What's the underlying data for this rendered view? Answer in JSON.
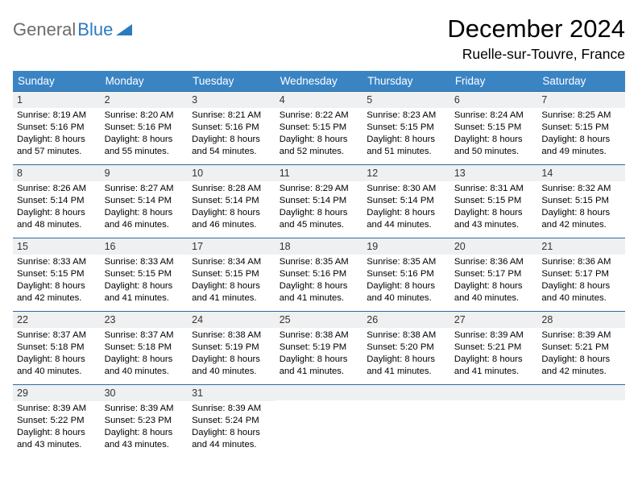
{
  "logo": {
    "part1": "General",
    "part2": "Blue"
  },
  "title": "December 2024",
  "location": "Ruelle-sur-Touvre, France",
  "colors": {
    "header_bg": "#3a84c4",
    "row_border": "#2e6aa0",
    "daynum_bg": "#eef0f1",
    "logo_gray": "#6c6c6c",
    "logo_blue": "#2b7bbf"
  },
  "weekdays": [
    "Sunday",
    "Monday",
    "Tuesday",
    "Wednesday",
    "Thursday",
    "Friday",
    "Saturday"
  ],
  "weeks": [
    [
      {
        "n": "1",
        "sr": "8:19 AM",
        "ss": "5:16 PM",
        "dl": "8 hours and 57 minutes."
      },
      {
        "n": "2",
        "sr": "8:20 AM",
        "ss": "5:16 PM",
        "dl": "8 hours and 55 minutes."
      },
      {
        "n": "3",
        "sr": "8:21 AM",
        "ss": "5:16 PM",
        "dl": "8 hours and 54 minutes."
      },
      {
        "n": "4",
        "sr": "8:22 AM",
        "ss": "5:15 PM",
        "dl": "8 hours and 52 minutes."
      },
      {
        "n": "5",
        "sr": "8:23 AM",
        "ss": "5:15 PM",
        "dl": "8 hours and 51 minutes."
      },
      {
        "n": "6",
        "sr": "8:24 AM",
        "ss": "5:15 PM",
        "dl": "8 hours and 50 minutes."
      },
      {
        "n": "7",
        "sr": "8:25 AM",
        "ss": "5:15 PM",
        "dl": "8 hours and 49 minutes."
      }
    ],
    [
      {
        "n": "8",
        "sr": "8:26 AM",
        "ss": "5:14 PM",
        "dl": "8 hours and 48 minutes."
      },
      {
        "n": "9",
        "sr": "8:27 AM",
        "ss": "5:14 PM",
        "dl": "8 hours and 46 minutes."
      },
      {
        "n": "10",
        "sr": "8:28 AM",
        "ss": "5:14 PM",
        "dl": "8 hours and 46 minutes."
      },
      {
        "n": "11",
        "sr": "8:29 AM",
        "ss": "5:14 PM",
        "dl": "8 hours and 45 minutes."
      },
      {
        "n": "12",
        "sr": "8:30 AM",
        "ss": "5:14 PM",
        "dl": "8 hours and 44 minutes."
      },
      {
        "n": "13",
        "sr": "8:31 AM",
        "ss": "5:15 PM",
        "dl": "8 hours and 43 minutes."
      },
      {
        "n": "14",
        "sr": "8:32 AM",
        "ss": "5:15 PM",
        "dl": "8 hours and 42 minutes."
      }
    ],
    [
      {
        "n": "15",
        "sr": "8:33 AM",
        "ss": "5:15 PM",
        "dl": "8 hours and 42 minutes."
      },
      {
        "n": "16",
        "sr": "8:33 AM",
        "ss": "5:15 PM",
        "dl": "8 hours and 41 minutes."
      },
      {
        "n": "17",
        "sr": "8:34 AM",
        "ss": "5:15 PM",
        "dl": "8 hours and 41 minutes."
      },
      {
        "n": "18",
        "sr": "8:35 AM",
        "ss": "5:16 PM",
        "dl": "8 hours and 41 minutes."
      },
      {
        "n": "19",
        "sr": "8:35 AM",
        "ss": "5:16 PM",
        "dl": "8 hours and 40 minutes."
      },
      {
        "n": "20",
        "sr": "8:36 AM",
        "ss": "5:17 PM",
        "dl": "8 hours and 40 minutes."
      },
      {
        "n": "21",
        "sr": "8:36 AM",
        "ss": "5:17 PM",
        "dl": "8 hours and 40 minutes."
      }
    ],
    [
      {
        "n": "22",
        "sr": "8:37 AM",
        "ss": "5:18 PM",
        "dl": "8 hours and 40 minutes."
      },
      {
        "n": "23",
        "sr": "8:37 AM",
        "ss": "5:18 PM",
        "dl": "8 hours and 40 minutes."
      },
      {
        "n": "24",
        "sr": "8:38 AM",
        "ss": "5:19 PM",
        "dl": "8 hours and 40 minutes."
      },
      {
        "n": "25",
        "sr": "8:38 AM",
        "ss": "5:19 PM",
        "dl": "8 hours and 41 minutes."
      },
      {
        "n": "26",
        "sr": "8:38 AM",
        "ss": "5:20 PM",
        "dl": "8 hours and 41 minutes."
      },
      {
        "n": "27",
        "sr": "8:39 AM",
        "ss": "5:21 PM",
        "dl": "8 hours and 41 minutes."
      },
      {
        "n": "28",
        "sr": "8:39 AM",
        "ss": "5:21 PM",
        "dl": "8 hours and 42 minutes."
      }
    ],
    [
      {
        "n": "29",
        "sr": "8:39 AM",
        "ss": "5:22 PM",
        "dl": "8 hours and 43 minutes."
      },
      {
        "n": "30",
        "sr": "8:39 AM",
        "ss": "5:23 PM",
        "dl": "8 hours and 43 minutes."
      },
      {
        "n": "31",
        "sr": "8:39 AM",
        "ss": "5:24 PM",
        "dl": "8 hours and 44 minutes."
      },
      null,
      null,
      null,
      null
    ]
  ],
  "labels": {
    "sunrise": "Sunrise:",
    "sunset": "Sunset:",
    "daylight": "Daylight:"
  }
}
